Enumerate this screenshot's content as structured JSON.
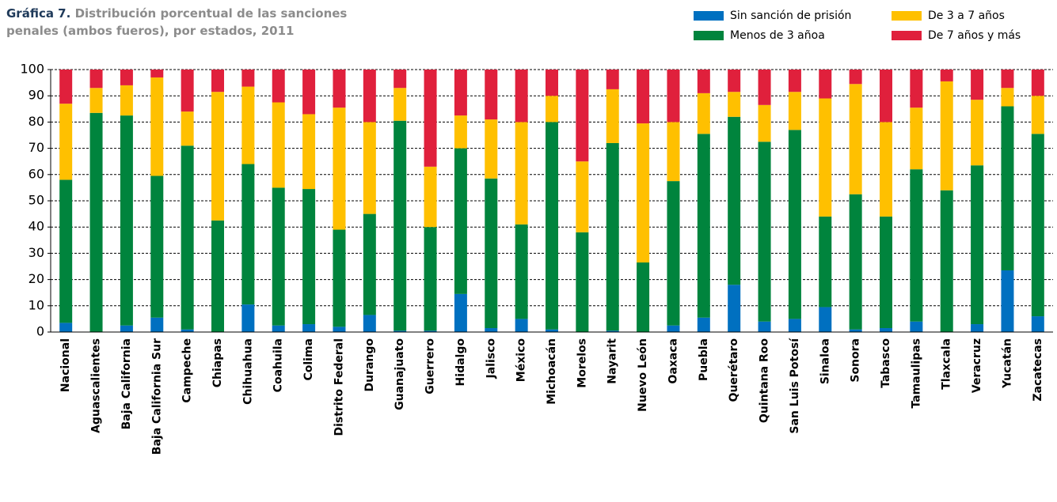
{
  "chart_data": {
    "type": "stacked_bar",
    "title_prefix": "Gráfica 7.",
    "title": "Distribución porcentual de las sanciones penales (ambos fueros), por estados, 2011",
    "categories": [
      "Nacional",
      "Aguascalientes",
      "Baja California",
      "Baja California Sur",
      "Campeche",
      "Chiapas",
      "Chihuahua",
      "Coahuila",
      "Colima",
      "Distrito Federal",
      "Durango",
      "Guanajuato",
      "Guerrero",
      "Hidalgo",
      "Jalisco",
      "México",
      "Michoacán",
      "Morelos",
      "Nayarit",
      "Nuevo León",
      "Oaxaca",
      "Puebla",
      "Querétaro",
      "Quintana Roo",
      "San Luis Potosí",
      "Sinaloa",
      "Sonora",
      "Tabasco",
      "Tamaulipas",
      "Tlaxcala",
      "Veracruz",
      "Yucatán",
      "Zacatecas"
    ],
    "series": [
      {
        "name": "Sin sanción de prisión",
        "color": "#0070c0",
        "values": [
          3.5,
          0,
          2.5,
          5.5,
          1,
          0,
          10.5,
          2.5,
          3,
          2,
          6.5,
          0.5,
          0.5,
          14.5,
          1.5,
          5,
          1,
          0,
          0.5,
          0,
          2.5,
          5.5,
          18,
          4,
          5,
          9.5,
          1,
          1.5,
          4,
          0,
          3,
          23.5,
          6
        ]
      },
      {
        "name": "Menos de 3 añoa",
        "color": "#00843d",
        "values": [
          54.5,
          83.5,
          80,
          54,
          70,
          42.5,
          53.5,
          52.5,
          51.5,
          37,
          38.5,
          80,
          39.5,
          55.5,
          57,
          36,
          79,
          38,
          71.5,
          26.5,
          55,
          70,
          64,
          68.5,
          72,
          34.5,
          51.5,
          42.5,
          58,
          54,
          60.5,
          62.5,
          69.5
        ]
      },
      {
        "name": "De 3 a 7 años",
        "color": "#ffc000",
        "values": [
          29,
          9.5,
          11.5,
          37.5,
          13,
          49,
          29.5,
          32.5,
          28.5,
          46.5,
          35,
          12.5,
          23,
          12.5,
          22.5,
          39,
          10,
          27,
          20.5,
          53,
          22.5,
          15.5,
          9.5,
          14,
          14.5,
          45,
          42,
          36,
          23.5,
          41.5,
          25,
          7,
          14.5
        ]
      },
      {
        "name": "De 7 años y más",
        "color": "#e0203c",
        "values": [
          13,
          7,
          6,
          3,
          16,
          8.5,
          6.5,
          12.5,
          17,
          14.5,
          20,
          7,
          37,
          17.5,
          19,
          20,
          10,
          35,
          7.5,
          20.5,
          20,
          9,
          8.5,
          13.5,
          8.5,
          11,
          5.5,
          20,
          14.5,
          4.5,
          11.5,
          7,
          10
        ]
      }
    ],
    "ylim": [
      0,
      100
    ],
    "yticks": [
      0,
      10,
      20,
      30,
      40,
      50,
      60,
      70,
      80,
      90,
      100
    ],
    "grid": true,
    "legend": "top-right"
  }
}
